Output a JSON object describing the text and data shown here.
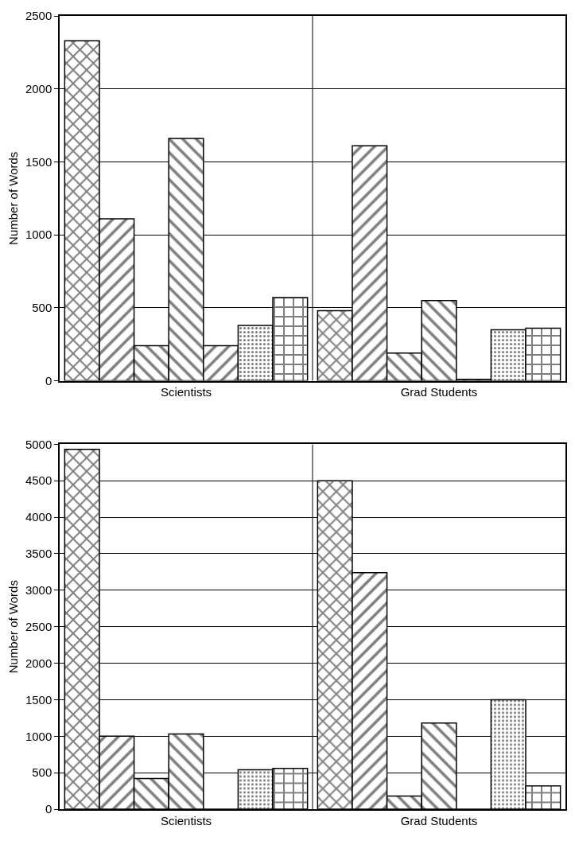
{
  "chart_data": [
    {
      "type": "bar",
      "ylabel": "Number of Words",
      "categories": [
        "Scientists",
        "Grad Students"
      ],
      "ylim": [
        0,
        2500
      ],
      "yticks": [
        0,
        500,
        1000,
        1500,
        2000,
        2500
      ],
      "grid": "y",
      "series": [
        {
          "color": "#000000",
          "values": [
            2330,
            480
          ]
        },
        {
          "color": "#000000",
          "values": [
            1110,
            1610
          ]
        },
        {
          "color": "#000000",
          "values": [
            240,
            190
          ]
        },
        {
          "color": "#000000",
          "values": [
            1660,
            550
          ]
        },
        {
          "color": "#000000",
          "values": [
            240,
            10
          ]
        },
        {
          "color": "#000000",
          "values": [
            380,
            350
          ]
        },
        {
          "color": "#000000",
          "values": [
            570,
            360
          ]
        }
      ]
    },
    {
      "type": "bar",
      "ylabel": "Number of Words",
      "categories": [
        "Scientists",
        "Grad Students"
      ],
      "ylim": [
        0,
        5000
      ],
      "yticks": [
        0,
        500,
        1000,
        1500,
        2000,
        2500,
        3000,
        3500,
        4000,
        4500,
        5000
      ],
      "grid": "y",
      "series": [
        {
          "color": "#000000",
          "values": [
            4930,
            4500
          ]
        },
        {
          "color": "#000000",
          "values": [
            1000,
            3240
          ]
        },
        {
          "color": "#000000",
          "values": [
            420,
            180
          ]
        },
        {
          "color": "#000000",
          "values": [
            1030,
            1180
          ]
        },
        {
          "color": "#000000",
          "values": [
            0,
            0
          ]
        },
        {
          "color": "#000000",
          "values": [
            540,
            1500
          ]
        },
        {
          "color": "#000000",
          "values": [
            560,
            320
          ]
        }
      ]
    }
  ]
}
